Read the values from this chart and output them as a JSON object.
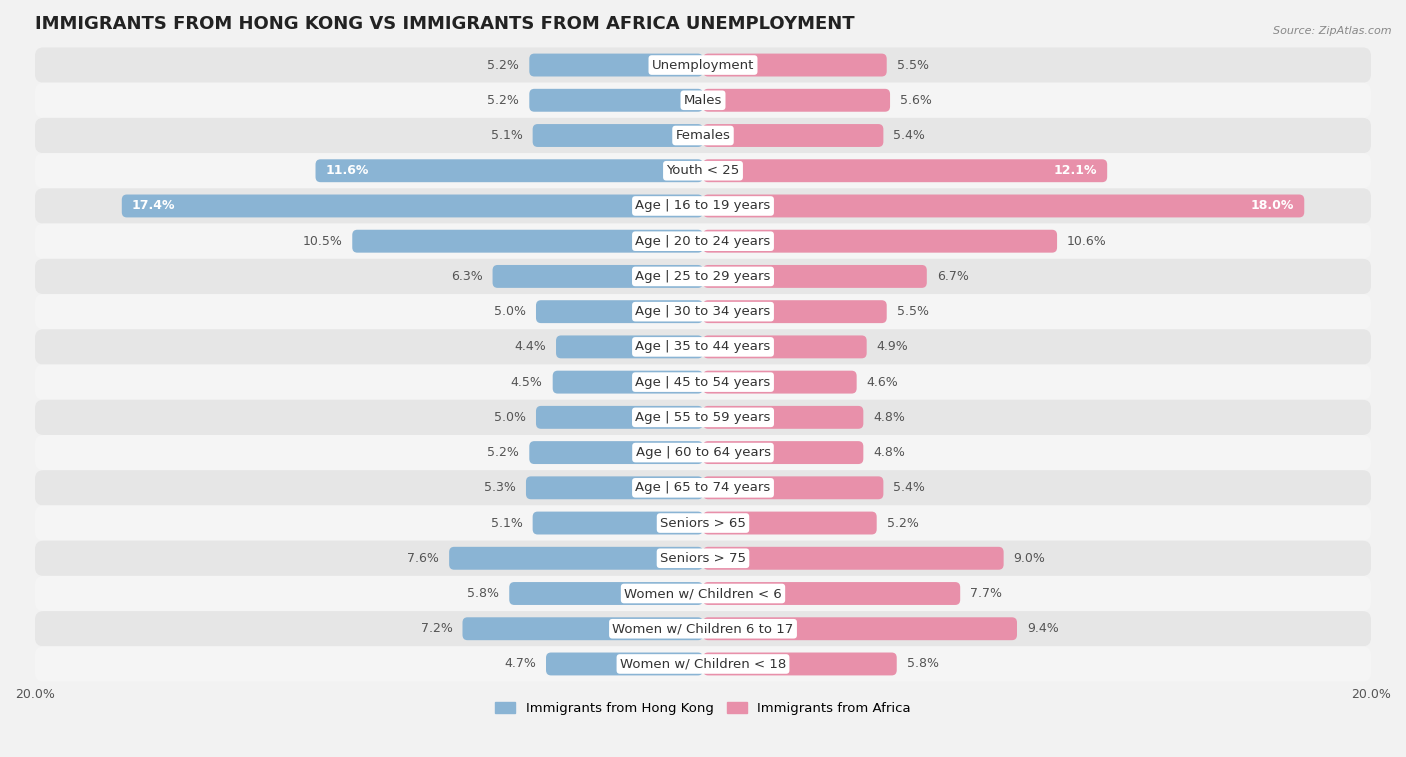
{
  "title": "IMMIGRANTS FROM HONG KONG VS IMMIGRANTS FROM AFRICA UNEMPLOYMENT",
  "source": "Source: ZipAtlas.com",
  "categories": [
    "Unemployment",
    "Males",
    "Females",
    "Youth < 25",
    "Age | 16 to 19 years",
    "Age | 20 to 24 years",
    "Age | 25 to 29 years",
    "Age | 30 to 34 years",
    "Age | 35 to 44 years",
    "Age | 45 to 54 years",
    "Age | 55 to 59 years",
    "Age | 60 to 64 years",
    "Age | 65 to 74 years",
    "Seniors > 65",
    "Seniors > 75",
    "Women w/ Children < 6",
    "Women w/ Children 6 to 17",
    "Women w/ Children < 18"
  ],
  "hong_kong_values": [
    5.2,
    5.2,
    5.1,
    11.6,
    17.4,
    10.5,
    6.3,
    5.0,
    4.4,
    4.5,
    5.0,
    5.2,
    5.3,
    5.1,
    7.6,
    5.8,
    7.2,
    4.7
  ],
  "africa_values": [
    5.5,
    5.6,
    5.4,
    12.1,
    18.0,
    10.6,
    6.7,
    5.5,
    4.9,
    4.6,
    4.8,
    4.8,
    5.4,
    5.2,
    9.0,
    7.7,
    9.4,
    5.8
  ],
  "hong_kong_color": "#8ab4d4",
  "africa_color": "#e890aa",
  "max_value": 20.0,
  "background_color": "#f2f2f2",
  "row_color_odd": "#e6e6e6",
  "row_color_even": "#f5f5f5",
  "title_fontsize": 13,
  "label_fontsize": 9.5,
  "value_fontsize": 9,
  "legend_label_hk": "Immigrants from Hong Kong",
  "legend_label_africa": "Immigrants from Africa",
  "large_threshold": 11.0
}
